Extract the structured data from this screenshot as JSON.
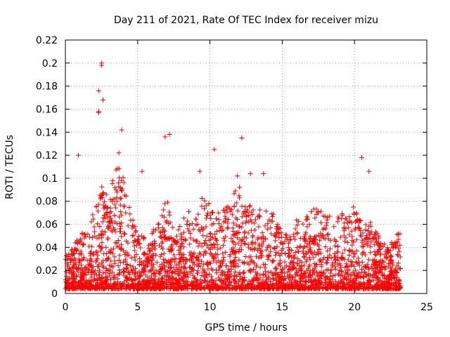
{
  "chart_data": {
    "type": "scatter",
    "title": "Day 211 of 2021, Rate Of TEC Index for receiver mizu",
    "xlabel": "GPS time / hours",
    "ylabel": "ROTI / TECUs",
    "xlim": [
      0,
      25
    ],
    "ylim": [
      0,
      0.22
    ],
    "xticks": [
      "0",
      "5",
      "10",
      "15",
      "20",
      "25"
    ],
    "yticks": [
      "0",
      "0.02",
      "0.04",
      "0.06",
      "0.08",
      "0.1",
      "0.12",
      "0.14",
      "0.16",
      "0.18",
      "0.2",
      "0.22"
    ],
    "grid": true,
    "marker": "+",
    "color": "#ff0000",
    "x_data_extent": [
      0,
      23.2
    ],
    "notable_points": [
      {
        "x": 2.5,
        "y": 0.2
      },
      {
        "x": 2.5,
        "y": 0.198
      },
      {
        "x": 2.3,
        "y": 0.176
      },
      {
        "x": 2.6,
        "y": 0.168
      },
      {
        "x": 2.3,
        "y": 0.158
      },
      {
        "x": 2.3,
        "y": 0.157
      },
      {
        "x": 3.9,
        "y": 0.142
      },
      {
        "x": 7.2,
        "y": 0.138
      },
      {
        "x": 6.9,
        "y": 0.136
      },
      {
        "x": 12.2,
        "y": 0.135
      },
      {
        "x": 10.3,
        "y": 0.125
      },
      {
        "x": 3.7,
        "y": 0.122
      },
      {
        "x": 0.9,
        "y": 0.12
      },
      {
        "x": 20.5,
        "y": 0.118
      },
      {
        "x": 12.8,
        "y": 0.104
      },
      {
        "x": 21.0,
        "y": 0.106
      },
      {
        "x": 9.3,
        "y": 0.106
      },
      {
        "x": 13.7,
        "y": 0.104
      },
      {
        "x": 5.3,
        "y": 0.106
      },
      {
        "x": 11.9,
        "y": 0.102
      }
    ],
    "envelope": {
      "description_hours": [
        0,
        0.5,
        1,
        1.5,
        2,
        2.5,
        3,
        3.5,
        4,
        4.5,
        5,
        5.5,
        6,
        6.5,
        7,
        7.5,
        8,
        8.5,
        9,
        9.5,
        10,
        10.5,
        11,
        11.5,
        12,
        12.5,
        13,
        13.5,
        14,
        14.5,
        15,
        15.5,
        16,
        16.5,
        17,
        17.5,
        18,
        18.5,
        19,
        19.5,
        20,
        20.5,
        21,
        21.5,
        22,
        22.5,
        23
      ],
      "typical_max": [
        0.03,
        0.035,
        0.05,
        0.05,
        0.07,
        0.09,
        0.08,
        0.11,
        0.1,
        0.07,
        0.05,
        0.05,
        0.05,
        0.06,
        0.08,
        0.05,
        0.06,
        0.07,
        0.07,
        0.08,
        0.08,
        0.07,
        0.07,
        0.08,
        0.09,
        0.08,
        0.07,
        0.07,
        0.08,
        0.06,
        0.05,
        0.05,
        0.06,
        0.06,
        0.07,
        0.07,
        0.07,
        0.06,
        0.07,
        0.06,
        0.08,
        0.06,
        0.06,
        0.05,
        0.04,
        0.04,
        0.05
      ]
    }
  }
}
